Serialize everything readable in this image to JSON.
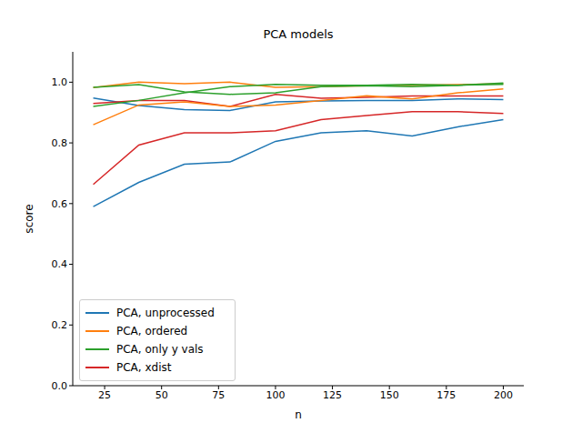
{
  "chart_data": {
    "type": "line",
    "title": "PCA models",
    "x_label": "n",
    "y_label": "score",
    "x": [
      20,
      40,
      60,
      80,
      100,
      120,
      140,
      160,
      180,
      200
    ],
    "xlim": [
      11,
      209
    ],
    "xticks": [
      25,
      50,
      75,
      100,
      125,
      150,
      175,
      200
    ],
    "ylim": [
      0,
      1.1
    ],
    "yticks": [
      {
        "value": 0,
        "label": "0.0"
      },
      {
        "value": 0.2,
        "label": "0.2"
      },
      {
        "value": 0.4,
        "label": "0.4"
      },
      {
        "value": 0.6,
        "label": "0.6"
      },
      {
        "value": 0.8,
        "label": "0.8"
      },
      {
        "value": 1.0,
        "label": "1.0"
      }
    ],
    "grid": false,
    "legend": "lower left",
    "series": [
      {
        "name": "PCA, unprocessed",
        "color": "#1f77b4",
        "values": [
          0.948,
          0.923,
          0.91,
          0.907,
          0.935,
          0.938,
          0.94,
          0.94,
          0.945,
          0.943
        ]
      },
      {
        "name": "PCA, ordered",
        "color": "#ff7f0e",
        "values": [
          0.982,
          1.0,
          0.995,
          1.0,
          0.983,
          0.985,
          0.988,
          0.99,
          0.992,
          0.995
        ]
      },
      {
        "name": "PCA, only y vals",
        "color": "#2ca02c",
        "values": [
          0.983,
          0.992,
          0.968,
          0.96,
          0.965,
          0.985,
          0.988,
          0.985,
          0.99,
          0.993
        ]
      },
      {
        "name": "PCA, xdist",
        "color": "#d62728",
        "values": [
          0.93,
          0.94,
          0.94,
          0.92,
          0.96,
          0.947,
          0.95,
          0.955,
          0.955,
          0.955
        ]
      },
      {
        "name": "PCA, unprocessed",
        "color": "#1f77b4",
        "values": [
          0.59,
          0.67,
          0.73,
          0.737,
          0.805,
          0.833,
          0.84,
          0.823,
          0.853,
          0.877
        ]
      },
      {
        "name": "PCA, ordered",
        "color": "#ff7f0e",
        "values": [
          0.86,
          0.925,
          0.935,
          0.92,
          0.925,
          0.94,
          0.955,
          0.945,
          0.965,
          0.978
        ]
      },
      {
        "name": "PCA, only y vals",
        "color": "#2ca02c",
        "values": [
          0.92,
          0.94,
          0.965,
          0.985,
          0.993,
          0.99,
          0.99,
          0.993,
          0.99,
          0.997
        ]
      },
      {
        "name": "PCA, xdist",
        "color": "#d62728",
        "values": [
          0.663,
          0.793,
          0.833,
          0.833,
          0.84,
          0.877,
          0.89,
          0.903,
          0.903,
          0.897
        ]
      }
    ]
  }
}
